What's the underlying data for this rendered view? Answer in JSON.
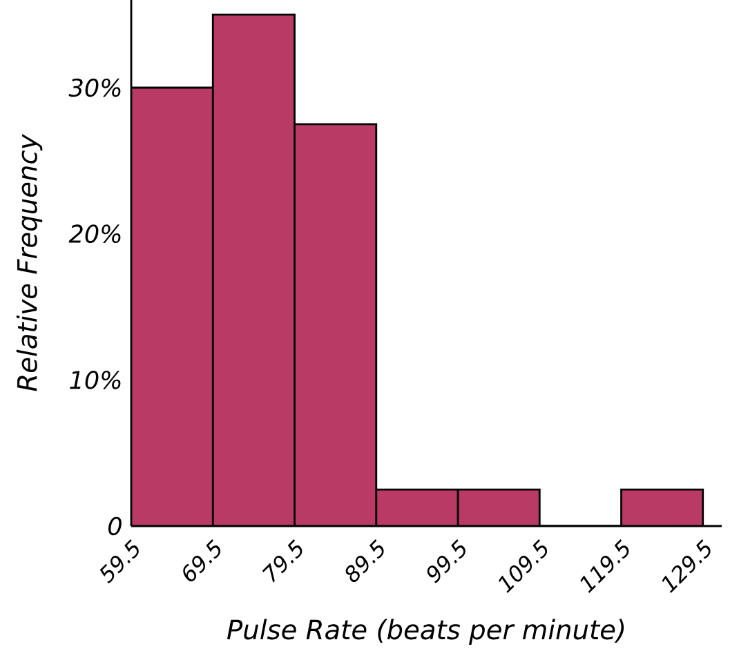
{
  "chart_data": {
    "type": "histogram",
    "xlabel": "Pulse Rate (beats per minute)",
    "ylabel": "Relative Frequency",
    "bins": [
      59.5,
      69.5,
      79.5,
      89.5,
      99.5,
      109.5,
      119.5,
      129.5
    ],
    "values": [
      30,
      35,
      27.5,
      2.5,
      2.5,
      0,
      2.5
    ],
    "color": "#b83a65",
    "xlim": [
      59.5,
      131.8
    ],
    "ylim": [
      0,
      36
    ],
    "xticks": [
      59.5,
      69.5,
      79.5,
      89.5,
      99.5,
      109.5,
      119.5,
      129.5
    ],
    "yticks": [
      0,
      {
        "value": 10,
        "label": "10%"
      },
      {
        "value": 20,
        "label": "20%"
      },
      {
        "value": 30,
        "label": "30%"
      }
    ],
    "grid": false
  }
}
